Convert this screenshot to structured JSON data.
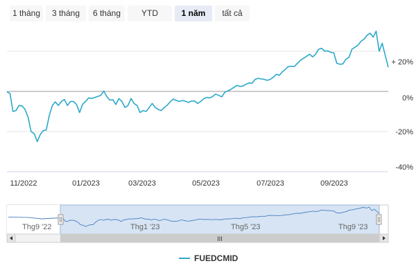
{
  "range_selector": {
    "buttons": [
      {
        "label": "1 tháng",
        "active": false
      },
      {
        "label": "3 tháng",
        "active": false
      },
      {
        "label": "6 tháng",
        "active": false
      },
      {
        "label": "YTD",
        "active": false
      },
      {
        "label": "1 năm",
        "active": true
      },
      {
        "label": "tất cả",
        "active": false
      }
    ]
  },
  "colors": {
    "series": "#2aa8c9",
    "navigator_fill": "#dbe8f6",
    "navigator_mask": "#cfe0f3",
    "grid": "#e6e6e6",
    "zero_line": "#999999"
  },
  "chart_data": {
    "type": "line",
    "title": "",
    "xlabel": "",
    "ylabel": "",
    "x_ticks": [
      "11/2022",
      "01/2023",
      "03/2023",
      "05/2023",
      "07/2023",
      "09/2023"
    ],
    "y_ticks": [
      "+ 20%",
      "0%",
      "-20%",
      "-40%"
    ],
    "ylim": [
      -40,
      30
    ],
    "grid": true,
    "legend": "bottom-center",
    "series": [
      {
        "name": "FUEDCMID",
        "x": [
          "2022-10-13",
          "2022-10-16",
          "2022-10-19",
          "2022-10-22",
          "2022-10-25",
          "2022-10-28",
          "2022-10-31",
          "2022-11-03",
          "2022-11-06",
          "2022-11-09",
          "2022-11-12",
          "2022-11-15",
          "2022-11-18",
          "2022-11-21",
          "2022-11-24",
          "2022-11-27",
          "2022-11-30",
          "2022-12-03",
          "2022-12-06",
          "2022-12-09",
          "2022-12-12",
          "2022-12-15",
          "2022-12-18",
          "2022-12-21",
          "2022-12-24",
          "2022-12-27",
          "2022-12-30",
          "2023-01-02",
          "2023-01-05",
          "2023-01-08",
          "2023-01-11",
          "2023-01-14",
          "2023-01-17",
          "2023-01-20",
          "2023-01-23",
          "2023-01-26",
          "2023-01-29",
          "2023-02-01",
          "2023-02-04",
          "2023-02-07",
          "2023-02-10",
          "2023-02-13",
          "2023-02-16",
          "2023-02-19",
          "2023-02-22",
          "2023-02-25",
          "2023-02-28",
          "2023-03-03",
          "2023-03-06",
          "2023-03-09",
          "2023-03-12",
          "2023-03-15",
          "2023-03-18",
          "2023-03-21",
          "2023-03-24",
          "2023-03-27",
          "2023-03-30",
          "2023-04-02",
          "2023-04-05",
          "2023-04-08",
          "2023-04-11",
          "2023-04-14",
          "2023-04-17",
          "2023-04-20",
          "2023-04-23",
          "2023-04-26",
          "2023-04-29",
          "2023-05-02",
          "2023-05-05",
          "2023-05-08",
          "2023-05-11",
          "2023-05-14",
          "2023-05-17",
          "2023-05-20",
          "2023-05-23",
          "2023-05-26",
          "2023-05-29",
          "2023-06-01",
          "2023-06-04",
          "2023-06-07",
          "2023-06-10",
          "2023-06-13",
          "2023-06-16",
          "2023-06-19",
          "2023-06-22",
          "2023-06-25",
          "2023-06-28",
          "2023-07-01",
          "2023-07-04",
          "2023-07-07",
          "2023-07-10",
          "2023-07-13",
          "2023-07-16",
          "2023-07-19",
          "2023-07-22",
          "2023-07-25",
          "2023-07-28",
          "2023-07-31",
          "2023-08-03",
          "2023-08-06",
          "2023-08-09",
          "2023-08-12",
          "2023-08-15",
          "2023-08-18",
          "2023-08-21",
          "2023-08-24",
          "2023-08-27",
          "2023-08-30",
          "2023-09-02",
          "2023-09-05",
          "2023-09-08",
          "2023-09-11",
          "2023-09-14",
          "2023-09-17",
          "2023-09-20",
          "2023-09-23",
          "2023-09-26",
          "2023-09-29",
          "2023-10-02",
          "2023-10-05",
          "2023-10-08",
          "2023-10-11",
          "2023-10-14",
          "2023-10-17",
          "2023-10-20",
          "2023-10-23",
          "2023-10-26"
        ],
        "y": [
          -0.2,
          -1,
          -10,
          -9.5,
          -7,
          -7.2,
          -9,
          -13,
          -20,
          -21,
          -25,
          -21.5,
          -19.5,
          -19.2,
          -12,
          -7,
          -5.2,
          -7,
          -5,
          -4,
          -7,
          -5,
          -5,
          -6.5,
          -10.5,
          -6.4,
          -5,
          -3.2,
          -3.5,
          -3,
          -2.5,
          -2,
          0.2,
          -2.6,
          -4.3,
          -4.1,
          -6.5,
          -3.6,
          -5,
          -8,
          -7,
          -3.5,
          -6,
          -7,
          -10.5,
          -9.5,
          -10,
          -8,
          -6,
          -8,
          -9,
          -9.5,
          -8,
          -6.8,
          -5.1,
          -3.8,
          -4.5,
          -5,
          -4.5,
          -4.9,
          -5.5,
          -4.8,
          -4.8,
          -6,
          -5,
          -3.7,
          -3,
          -3.2,
          -2.5,
          -1.3,
          -2,
          -2.7,
          -0.4,
          0.3,
          1,
          2,
          3,
          2.5,
          2.7,
          3.6,
          4.2,
          4.1,
          6,
          6.5,
          6.2,
          6,
          5.5,
          6,
          7,
          8.5,
          8,
          9.8,
          11,
          12.4,
          12.5,
          12.5,
          14,
          15.5,
          16.5,
          17.5,
          18.5,
          17.2,
          18.5,
          21,
          21.5,
          20,
          20.2,
          19.5,
          19.2,
          14,
          13.5,
          13.7,
          16,
          17,
          21,
          22,
          23,
          25,
          26,
          28,
          29,
          27,
          30,
          20,
          24,
          18,
          12
        ]
      }
    ],
    "navigator": {
      "labels": [
        "Thg9 '22",
        "Thg1 '23",
        "Thg5 '23",
        "Thg9 '23"
      ],
      "scrollbar_grip": "III"
    }
  }
}
